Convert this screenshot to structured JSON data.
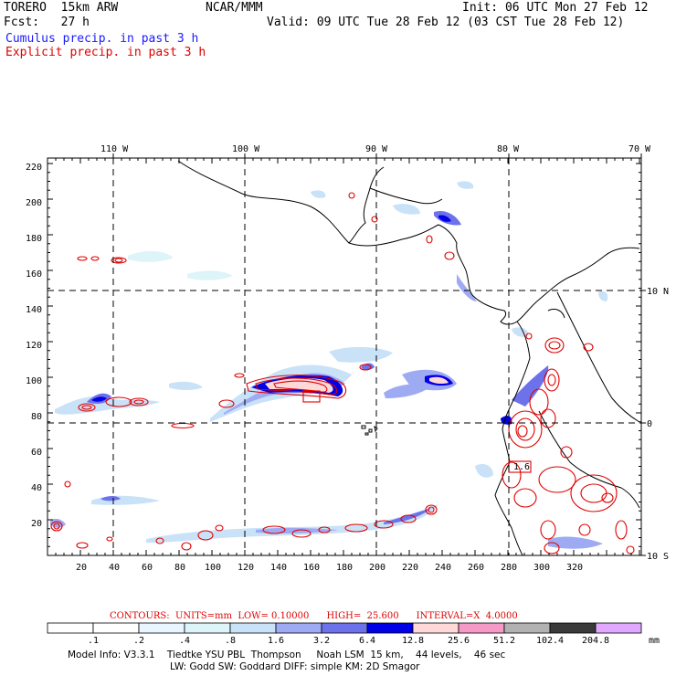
{
  "header": {
    "model": "TORERO  15km ARW",
    "center": "NCAR/MMM",
    "init": "Init: 06 UTC Mon 27 Feb 12",
    "fcst": "Fcst:   27 h",
    "valid": "Valid: 09 UTC Tue 28 Feb 12 (03 CST Tue 28 Feb 12)",
    "field1": "Cumulus precip. in past 3 h",
    "field2": "Explicit precip. in past 3 h"
  },
  "map": {
    "lon_labels": [
      "110 W",
      "100 W",
      "90 W",
      "80 W",
      "70 W"
    ],
    "lat_labels": [
      "10 N",
      "0",
      "10 S"
    ],
    "x_ticks": [
      "20",
      "40",
      "60",
      "80",
      "100",
      "120",
      "140",
      "160",
      "180",
      "200",
      "220",
      "240",
      "260",
      "280",
      "300",
      "320"
    ],
    "y_ticks": [
      "20",
      "40",
      "60",
      "80",
      "100",
      "120",
      "140",
      "160",
      "180",
      "200",
      "220"
    ],
    "box_label": "1.6"
  },
  "contours": {
    "line": "CONTOURS:  UNITS=mm  LOW= 0.10000      HIGH=  25.600      INTERVAL=X  4.0000"
  },
  "colorbar": {
    "colors": [
      "#ffffff",
      "#ffffff",
      "#eaf6ff",
      "#ddf4f8",
      "#c9e2f8",
      "#9eaaf2",
      "#6e72ea",
      "#0000e6",
      "#ffd8d8",
      "#f599c6",
      "#b2b2b2",
      "#3a3a3a",
      "#e0a8ff"
    ],
    "labels": [
      ".1",
      ".2",
      ".4",
      ".8",
      "1.6",
      "3.2",
      "6.4",
      "12.8",
      "25.6",
      "51.2",
      "102.4",
      "204.8"
    ],
    "units": "mm"
  },
  "footer": {
    "line1": "Model Info: V3.3.1    Tiedtke YSU PBL  Thompson     Noah LSM  15 km,    44 levels,    46 sec",
    "line2": "LW: Godd SW: Goddard DIFF: simple KM: 2D Smagor"
  }
}
